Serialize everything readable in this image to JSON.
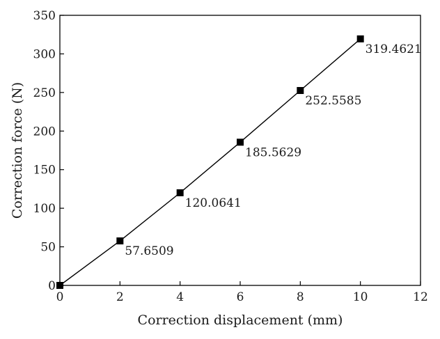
{
  "chart_data": {
    "type": "line",
    "title": "",
    "xlabel": "Correction displacement (mm)",
    "ylabel": "Correction force (N)",
    "xlim": [
      0,
      12
    ],
    "ylim": [
      0,
      350
    ],
    "xticks": [
      0,
      2,
      4,
      6,
      8,
      10,
      12
    ],
    "yticks": [
      0,
      50,
      100,
      150,
      200,
      250,
      300,
      350
    ],
    "grid": false,
    "legend": "none",
    "marker": "square",
    "line_color": "#000000",
    "series": [
      {
        "x": [
          0,
          2,
          4,
          6,
          8,
          10
        ],
        "y": [
          0,
          57.6509,
          120.0641,
          185.5629,
          252.5585,
          319.4621
        ]
      }
    ],
    "annotations": [
      {
        "x": 2,
        "y": 57.6509,
        "text": "57.6509"
      },
      {
        "x": 4,
        "y": 120.0641,
        "text": "120.0641"
      },
      {
        "x": 6,
        "y": 185.5629,
        "text": "185.5629"
      },
      {
        "x": 8,
        "y": 252.5585,
        "text": "252.5585"
      },
      {
        "x": 10,
        "y": 319.4621,
        "text": "319.4621"
      }
    ]
  }
}
